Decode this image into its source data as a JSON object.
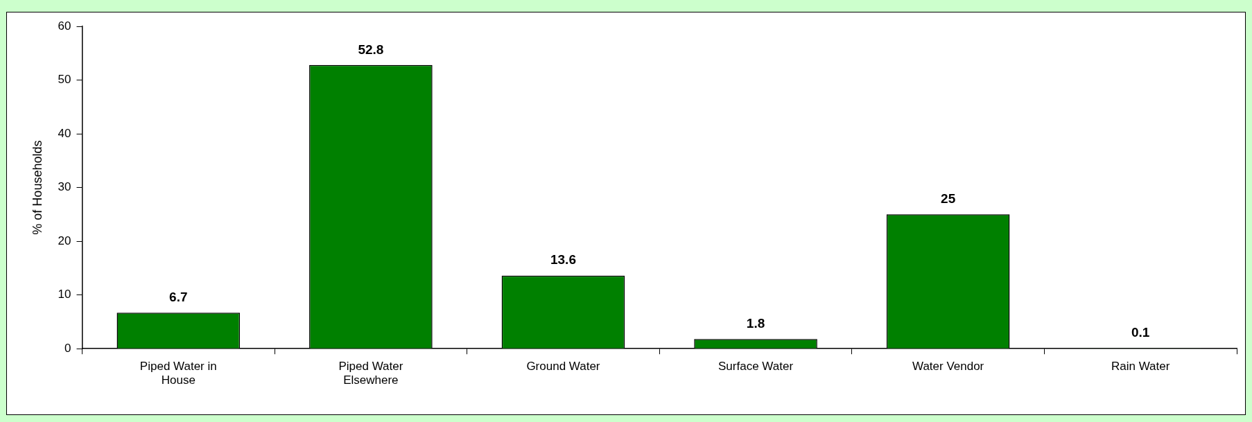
{
  "chart_data": {
    "type": "bar",
    "ylabel": "% of Households",
    "categories": [
      "Piped Water in House",
      "Piped Water Elsewhere",
      "Ground Water",
      "Surface Water",
      "Water Vendor",
      "Rain Water"
    ],
    "values": [
      6.7,
      52.8,
      13.6,
      1.8,
      25,
      0.1
    ],
    "color": "#008000",
    "ylim": [
      0,
      60
    ],
    "yticks": [
      0,
      10,
      20,
      30,
      40,
      50,
      60
    ],
    "grid": false,
    "legend": false,
    "data_labels": true
  }
}
